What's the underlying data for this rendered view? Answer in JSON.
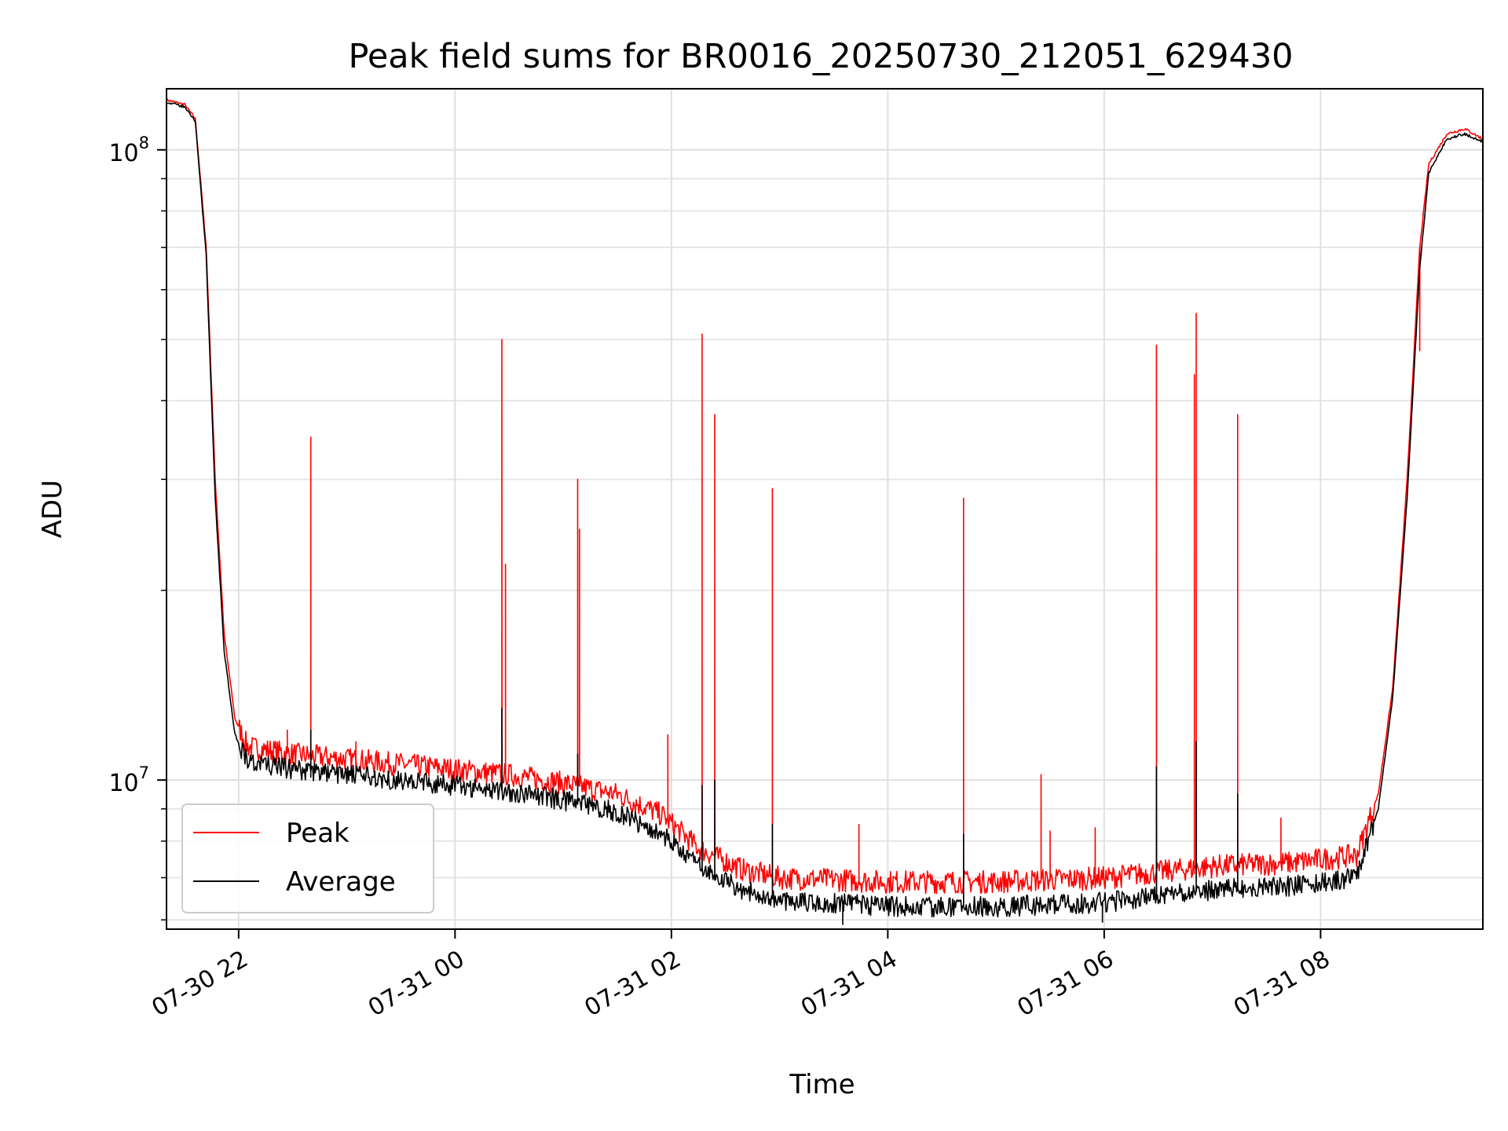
{
  "chart_data": {
    "type": "line",
    "title": "Peak field sums for BR0016_20250730_212051_629430",
    "xlabel": "Time",
    "ylabel": "ADU",
    "y_scale": "log",
    "ylim": [
      5800000,
      125000000
    ],
    "xlim": [
      "2025-07-30 21:20",
      "2025-07-31 09:30"
    ],
    "grid": true,
    "legend_position": "lower-left",
    "x_ticks": [
      {
        "value": "2025-07-30 22:00",
        "label": "07-30 22"
      },
      {
        "value": "2025-07-31 00:00",
        "label": "07-31 00"
      },
      {
        "value": "2025-07-31 02:00",
        "label": "07-31 02"
      },
      {
        "value": "2025-07-31 04:00",
        "label": "07-31 04"
      },
      {
        "value": "2025-07-31 06:00",
        "label": "07-31 06"
      },
      {
        "value": "2025-07-31 08:00",
        "label": "07-31 08"
      }
    ],
    "y_ticks": [
      {
        "value": 10000000,
        "base": "10",
        "exp": "7"
      },
      {
        "value": 100000000,
        "base": "10",
        "exp": "8"
      }
    ],
    "series": [
      {
        "name": "Peak",
        "color": "#ff0000",
        "baseline": [
          [
            "2025-07-30 21:20",
            120000000
          ],
          [
            "2025-07-30 21:30",
            118000000
          ],
          [
            "2025-07-30 21:36",
            112000000
          ],
          [
            "2025-07-30 21:42",
            70000000
          ],
          [
            "2025-07-30 21:47",
            30000000
          ],
          [
            "2025-07-30 21:52",
            17000000
          ],
          [
            "2025-07-30 21:58",
            12500000
          ],
          [
            "2025-07-30 22:05",
            11300000
          ],
          [
            "2025-07-30 22:30",
            11000000
          ],
          [
            "2025-07-30 23:00",
            10800000
          ],
          [
            "2025-07-30 23:30",
            10600000
          ],
          [
            "2025-07-31 00:00",
            10400000
          ],
          [
            "2025-07-31 00:30",
            10200000
          ],
          [
            "2025-07-31 01:00",
            9900000
          ],
          [
            "2025-07-31 01:30",
            9500000
          ],
          [
            "2025-07-31 01:55",
            8800000
          ],
          [
            "2025-07-31 02:15",
            7800000
          ],
          [
            "2025-07-31 02:40",
            7200000
          ],
          [
            "2025-07-31 03:00",
            7000000
          ],
          [
            "2025-07-31 04:00",
            6900000
          ],
          [
            "2025-07-31 05:00",
            6900000
          ],
          [
            "2025-07-31 06:00",
            7000000
          ],
          [
            "2025-07-31 07:00",
            7300000
          ],
          [
            "2025-07-31 07:45",
            7400000
          ],
          [
            "2025-07-31 08:20",
            7600000
          ],
          [
            "2025-07-31 08:32",
            9500000
          ],
          [
            "2025-07-31 08:40",
            14000000
          ],
          [
            "2025-07-31 08:48",
            30000000
          ],
          [
            "2025-07-31 08:55",
            70000000
          ],
          [
            "2025-07-31 09:00",
            95000000
          ],
          [
            "2025-07-31 09:10",
            106000000
          ],
          [
            "2025-07-31 09:20",
            108000000
          ],
          [
            "2025-07-31 09:30",
            104000000
          ]
        ],
        "spikes": [
          [
            "2025-07-30 22:40",
            35000000
          ],
          [
            "2025-07-30 22:27",
            12000000
          ],
          [
            "2025-07-30 23:05",
            11500000
          ],
          [
            "2025-07-31 00:26",
            50000000
          ],
          [
            "2025-07-31 00:28",
            22000000
          ],
          [
            "2025-07-31 01:08",
            30000000
          ],
          [
            "2025-07-31 01:09",
            25000000
          ],
          [
            "2025-07-31 01:58",
            11800000
          ],
          [
            "2025-07-31 02:17",
            51000000
          ],
          [
            "2025-07-31 02:24",
            38000000
          ],
          [
            "2025-07-31 02:56",
            29000000
          ],
          [
            "2025-07-31 03:44",
            8500000
          ],
          [
            "2025-07-31 04:42",
            28000000
          ],
          [
            "2025-07-31 05:25",
            10200000
          ],
          [
            "2025-07-31 05:30",
            8300000
          ],
          [
            "2025-07-31 05:55",
            8400000
          ],
          [
            "2025-07-31 06:29",
            49000000
          ],
          [
            "2025-07-31 06:50",
            44000000
          ],
          [
            "2025-07-31 06:51",
            55000000
          ],
          [
            "2025-07-31 07:14",
            38000000
          ],
          [
            "2025-07-31 07:38",
            8700000
          ],
          [
            "2025-07-31 08:55",
            48000000
          ]
        ]
      },
      {
        "name": "Average",
        "color": "#000000",
        "baseline": [
          [
            "2025-07-30 21:20",
            119000000
          ],
          [
            "2025-07-30 21:30",
            117000000
          ],
          [
            "2025-07-30 21:36",
            111000000
          ],
          [
            "2025-07-30 21:42",
            68000000
          ],
          [
            "2025-07-30 21:47",
            28000000
          ],
          [
            "2025-07-30 21:52",
            16000000
          ],
          [
            "2025-07-30 21:58",
            11800000
          ],
          [
            "2025-07-30 22:05",
            10700000
          ],
          [
            "2025-07-30 22:30",
            10400000
          ],
          [
            "2025-07-30 23:00",
            10200000
          ],
          [
            "2025-07-30 23:30",
            10000000
          ],
          [
            "2025-07-31 00:00",
            9800000
          ],
          [
            "2025-07-31 00:30",
            9600000
          ],
          [
            "2025-07-31 01:00",
            9300000
          ],
          [
            "2025-07-31 01:30",
            8900000
          ],
          [
            "2025-07-31 01:55",
            8200000
          ],
          [
            "2025-07-31 02:15",
            7300000
          ],
          [
            "2025-07-31 02:40",
            6700000
          ],
          [
            "2025-07-31 03:00",
            6450000
          ],
          [
            "2025-07-31 04:00",
            6300000
          ],
          [
            "2025-07-31 05:00",
            6300000
          ],
          [
            "2025-07-31 06:00",
            6400000
          ],
          [
            "2025-07-31 07:00",
            6700000
          ],
          [
            "2025-07-31 07:45",
            6800000
          ],
          [
            "2025-07-31 08:20",
            7000000
          ],
          [
            "2025-07-31 08:32",
            9000000
          ],
          [
            "2025-07-31 08:40",
            13500000
          ],
          [
            "2025-07-31 08:48",
            28000000
          ],
          [
            "2025-07-31 08:55",
            65000000
          ],
          [
            "2025-07-31 09:00",
            92000000
          ],
          [
            "2025-07-31 09:10",
            104000000
          ],
          [
            "2025-07-31 09:20",
            106000000
          ],
          [
            "2025-07-31 09:30",
            103000000
          ]
        ],
        "spikes": [
          [
            "2025-07-30 22:40",
            12000000
          ],
          [
            "2025-07-31 00:26",
            13000000
          ],
          [
            "2025-07-31 01:08",
            11000000
          ],
          [
            "2025-07-31 02:17",
            9800000
          ],
          [
            "2025-07-31 02:24",
            10000000
          ],
          [
            "2025-07-31 02:56",
            8500000
          ],
          [
            "2025-07-31 04:42",
            8200000
          ],
          [
            "2025-07-31 06:29",
            10500000
          ],
          [
            "2025-07-31 06:51",
            11500000
          ],
          [
            "2025-07-31 07:14",
            9500000
          ],
          [
            "2025-07-31 03:35",
            5900000
          ],
          [
            "2025-07-31 05:59",
            5950000
          ]
        ]
      }
    ]
  }
}
